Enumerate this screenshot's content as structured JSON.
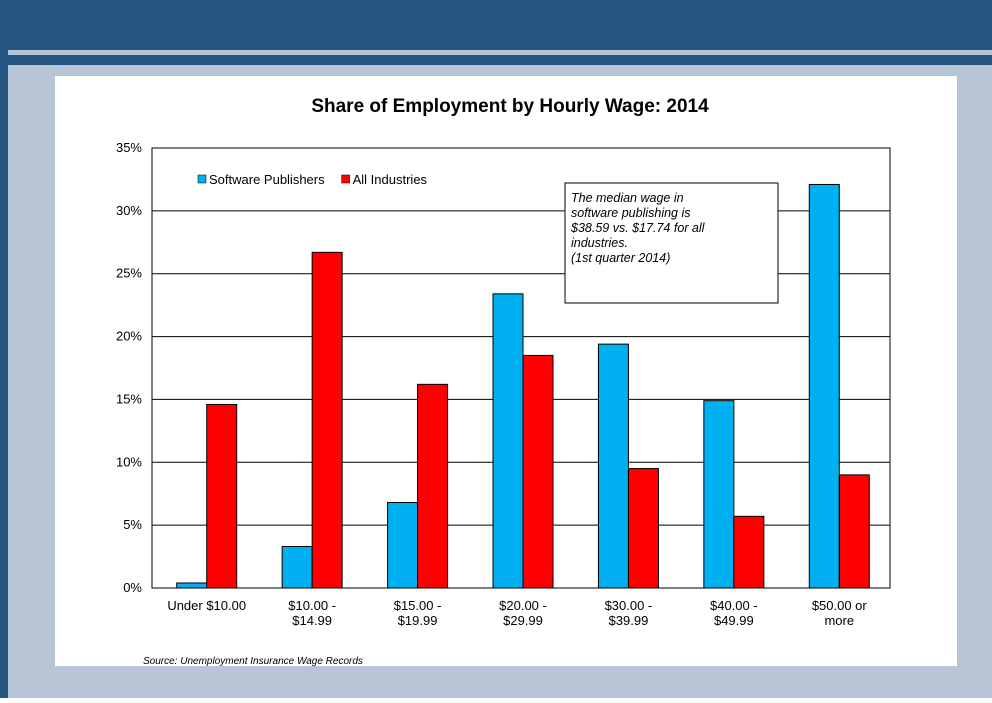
{
  "chart_data": {
    "type": "bar",
    "title": "Share of Employment by Hourly Wage: 2014",
    "categories": [
      [
        "Under $10.00"
      ],
      [
        "$10.00 -",
        "$14.99"
      ],
      [
        "$15.00 -",
        "$19.99"
      ],
      [
        "$20.00 -",
        "$29.99"
      ],
      [
        "$30.00 -",
        "$39.99"
      ],
      [
        "$40.00 -",
        "$49.99"
      ],
      [
        "$50.00 or",
        "more"
      ]
    ],
    "series": [
      {
        "name": "Software Publishers",
        "color": "#00b0f0",
        "values": [
          0.4,
          3.3,
          6.8,
          23.4,
          19.4,
          14.9,
          32.1
        ]
      },
      {
        "name": "All Industries",
        "color": "#ff0000",
        "values": [
          14.6,
          26.7,
          16.2,
          18.5,
          9.5,
          5.7,
          9.0
        ]
      }
    ],
    "ylim": [
      0,
      35
    ],
    "yticks": [
      {
        "value": 0,
        "label": "0%"
      },
      {
        "value": 5,
        "label": "5%"
      },
      {
        "value": 10,
        "label": "10%"
      },
      {
        "value": 15,
        "label": "15%"
      },
      {
        "value": 20,
        "label": "20%"
      },
      {
        "value": 25,
        "label": "25%"
      },
      {
        "value": 30,
        "label": "30%"
      },
      {
        "value": 35,
        "label": "35%"
      }
    ],
    "grid": true,
    "annotation": [
      "The median wage in",
      "software publishing is",
      "$38.59 vs. $17.74 for all",
      "industries.",
      "(1st quarter 2014)"
    ],
    "source": "Source: Unemployment Insurance Wage Records"
  }
}
